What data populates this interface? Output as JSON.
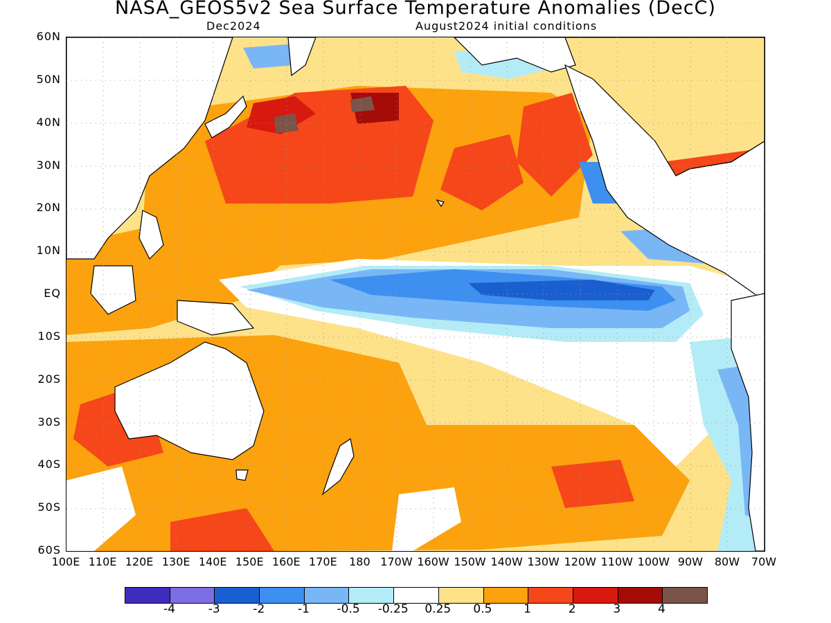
{
  "title": "NASA_GEOS5v2 Sea Surface Temperature Anomalies (DecC)",
  "subtitle_left": "Dec2024",
  "subtitle_right": "August2024 initial conditions",
  "lat_labels": [
    "60N",
    "50N",
    "40N",
    "30N",
    "20N",
    "10N",
    "EQ",
    "10S",
    "20S",
    "30S",
    "40S",
    "50S",
    "60S"
  ],
  "lon_labels": [
    "100E",
    "110E",
    "120E",
    "130E",
    "140E",
    "150E",
    "160E",
    "170E",
    "180",
    "170W",
    "160W",
    "150W",
    "140W",
    "130W",
    "120W",
    "110W",
    "100W",
    "90W",
    "80W",
    "70W"
  ],
  "legend": {
    "colors": [
      "#3f2ebd",
      "#7c6ee3",
      "#1a5fcf",
      "#3d8ff0",
      "#79b6f6",
      "#b3ecf7",
      "#ffffff",
      "#fde28a",
      "#fba20e",
      "#f5471a",
      "#d7190f",
      "#a50b07",
      "#7a5448"
    ],
    "labels": [
      "-4",
      "-3",
      "-2",
      "-1",
      "-0.5",
      "-0.25",
      "0.25",
      "0.5",
      "1",
      "2",
      "3",
      "4"
    ]
  },
  "colors": {
    "land": "#ffffff",
    "coast": "#000000",
    "gridline": "#9a9a9a"
  }
}
